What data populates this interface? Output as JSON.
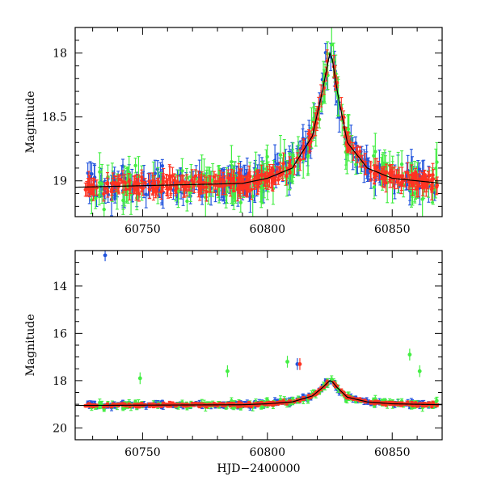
{
  "chart_data": [
    {
      "type": "scatter",
      "title": "",
      "xlabel": "",
      "ylabel": "Magnitude",
      "xlim": [
        60723,
        60870
      ],
      "ylim": [
        19.28,
        17.8
      ],
      "y_inverted": true,
      "xticks": [
        60750,
        60800,
        60850
      ],
      "xtick_labels": [
        "60750",
        "60800",
        "60850"
      ],
      "yticks": [
        18,
        18.5,
        19
      ],
      "ytick_labels": [
        "18",
        "18.5",
        "19"
      ],
      "grid": false,
      "legend": "none",
      "series": [
        {
          "color": "#2255dd",
          "n_points": 230,
          "errorbars": true
        },
        {
          "color": "#44ee44",
          "n_points": 170,
          "errorbars": true
        },
        {
          "color": "#ff3322",
          "n_points": 330,
          "errorbars": true
        }
      ],
      "model_curve": {
        "color": "#000000",
        "x": [
          60723,
          60790,
          60800,
          60810,
          60818,
          60822,
          60825,
          60826,
          60828,
          60832,
          60840,
          60850,
          60870
        ],
        "y": [
          19.05,
          19.02,
          18.98,
          18.9,
          18.65,
          18.3,
          18.0,
          18.05,
          18.3,
          18.7,
          18.9,
          18.98,
          19.02
        ]
      },
      "peak": {
        "x": 60826,
        "y": 17.95
      }
    },
    {
      "type": "scatter",
      "title": "",
      "xlabel": "HJD−2400000",
      "ylabel": "Magnitude",
      "xlim": [
        60723,
        60870
      ],
      "ylim": [
        20.5,
        12.5
      ],
      "y_inverted": true,
      "xticks": [
        60750,
        60800,
        60850
      ],
      "xtick_labels": [
        "60750",
        "60800",
        "60850"
      ],
      "yticks": [
        14,
        16,
        18,
        20
      ],
      "ytick_labels": [
        "14",
        "16",
        "18",
        "20"
      ],
      "grid": false,
      "legend": "none",
      "series": [
        {
          "color": "#2255dd",
          "n_points": 230,
          "errorbars": true
        },
        {
          "color": "#44ee44",
          "n_points": 170,
          "errorbars": true
        },
        {
          "color": "#ff3322",
          "n_points": 330,
          "errorbars": true
        }
      ],
      "model_curve": {
        "color": "#000000",
        "x": [
          60723,
          60790,
          60800,
          60810,
          60818,
          60822,
          60825,
          60826,
          60828,
          60832,
          60840,
          60850,
          60870
        ],
        "y": [
          19.05,
          19.02,
          18.98,
          18.9,
          18.65,
          18.3,
          18.0,
          18.05,
          18.3,
          18.7,
          18.9,
          18.98,
          19.02
        ]
      },
      "outliers": [
        {
          "series": 0,
          "x": 60735,
          "y": 12.7
        },
        {
          "series": 0,
          "x": 60812,
          "y": 17.3
        },
        {
          "series": 1,
          "x": 60808,
          "y": 17.2
        },
        {
          "series": 1,
          "x": 60784,
          "y": 17.6
        },
        {
          "series": 1,
          "x": 60749,
          "y": 17.9
        },
        {
          "series": 1,
          "x": 60857,
          "y": 16.9
        },
        {
          "series": 1,
          "x": 60861,
          "y": 17.6
        },
        {
          "series": 2,
          "x": 60813,
          "y": 17.3
        }
      ]
    }
  ]
}
